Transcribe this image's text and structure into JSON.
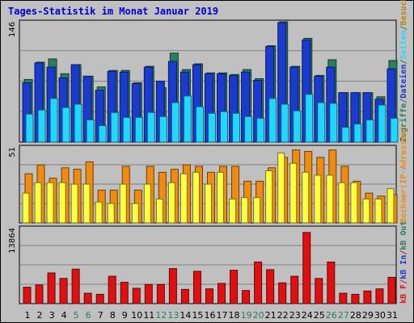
{
  "title": "Tages-Statistik im Monat Januar 2019",
  "colors": {
    "background": "#c0c0c0",
    "title": "#0000cc",
    "pages": "#1a3ad0",
    "files": "#20d8ff",
    "hits": "#2a7f60",
    "visits": "#f08a10",
    "sites": "#ffff40",
    "kbin": "#e01010",
    "weekend_label": "#2a7f60",
    "tick_label": "#000000"
  },
  "chart_data": [
    {
      "type": "bar",
      "panel": "top",
      "ymax_label": "146",
      "ylim": [
        0,
        146
      ],
      "categories": [
        "1",
        "2",
        "3",
        "4",
        "5",
        "6",
        "7",
        "8",
        "9",
        "10",
        "11",
        "12",
        "13",
        "14",
        "15",
        "16",
        "17",
        "18",
        "19",
        "20",
        "21",
        "22",
        "23",
        "24",
        "25",
        "26",
        "27",
        "28",
        "29",
        "30",
        "31"
      ],
      "weekend_days": [
        5,
        6,
        12,
        13,
        19,
        20,
        26,
        27
      ],
      "series": [
        {
          "name": "Zugriffe",
          "values": [
            76,
            97,
            101,
            83,
            94,
            80,
            67,
            87,
            87,
            72,
            92,
            66,
            108,
            88,
            95,
            84,
            84,
            82,
            88,
            77,
            117,
            146,
            92,
            126,
            81,
            100,
            60,
            60,
            60,
            55,
            99
          ]
        },
        {
          "name": "Dateien",
          "values": [
            72,
            96,
            91,
            78,
            94,
            80,
            63,
            86,
            85,
            71,
            91,
            74,
            98,
            85,
            94,
            83,
            83,
            81,
            85,
            75,
            116,
            145,
            91,
            124,
            80,
            91,
            60,
            60,
            60,
            52,
            89
          ]
        },
        {
          "name": "Seiten",
          "values": [
            34,
            39,
            53,
            42,
            46,
            27,
            20,
            36,
            30,
            30,
            36,
            31,
            48,
            56,
            43,
            35,
            37,
            35,
            31,
            29,
            53,
            46,
            38,
            58,
            48,
            47,
            18,
            22,
            27,
            45,
            29
          ]
        }
      ],
      "side_labels": [
        "Zugriffe",
        "/",
        "Dateien",
        "/",
        "Seiten",
        "/",
        "Besuche"
      ]
    },
    {
      "type": "bar",
      "panel": "middle",
      "ymax_label": "51",
      "ylim": [
        0,
        51
      ],
      "series": [
        {
          "name": "Besuche",
          "values": [
            33,
            39,
            30,
            37,
            36,
            41,
            22,
            22,
            38,
            22,
            38,
            34,
            36,
            39,
            38,
            34,
            38,
            38,
            28,
            28,
            37,
            44,
            49,
            48,
            44,
            49,
            38,
            28,
            20,
            18,
            19
          ]
        },
        {
          "name": "Rechner (IP-Adressen)",
          "values": [
            20,
            27,
            27,
            27,
            26,
            26,
            14,
            13,
            26,
            13,
            26,
            16,
            27,
            33,
            34,
            26,
            34,
            16,
            17,
            17,
            35,
            47,
            40,
            34,
            32,
            32,
            27,
            27,
            16,
            16,
            23
          ]
        }
      ],
      "side_labels": [
        "Rechner",
        "(IP-Adressen)"
      ]
    },
    {
      "type": "bar",
      "panel": "bottom",
      "ymax_label": "13864",
      "ylim": [
        0,
        13864
      ],
      "series": [
        {
          "name": "kB F",
          "values": [
            3000,
            3400,
            5600,
            4600,
            6300,
            1900,
            1700,
            5000,
            3900,
            2800,
            3500,
            3500,
            6400,
            2600,
            5900,
            2700,
            3700,
            6100,
            2400,
            7600,
            6200,
            3800,
            5000,
            13000,
            4600,
            7600,
            1900,
            1700,
            2300,
            2700,
            4800
          ]
        }
      ],
      "side_labels": [
        "kB F",
        "/",
        "kB In",
        "/",
        "kB Out"
      ]
    }
  ]
}
